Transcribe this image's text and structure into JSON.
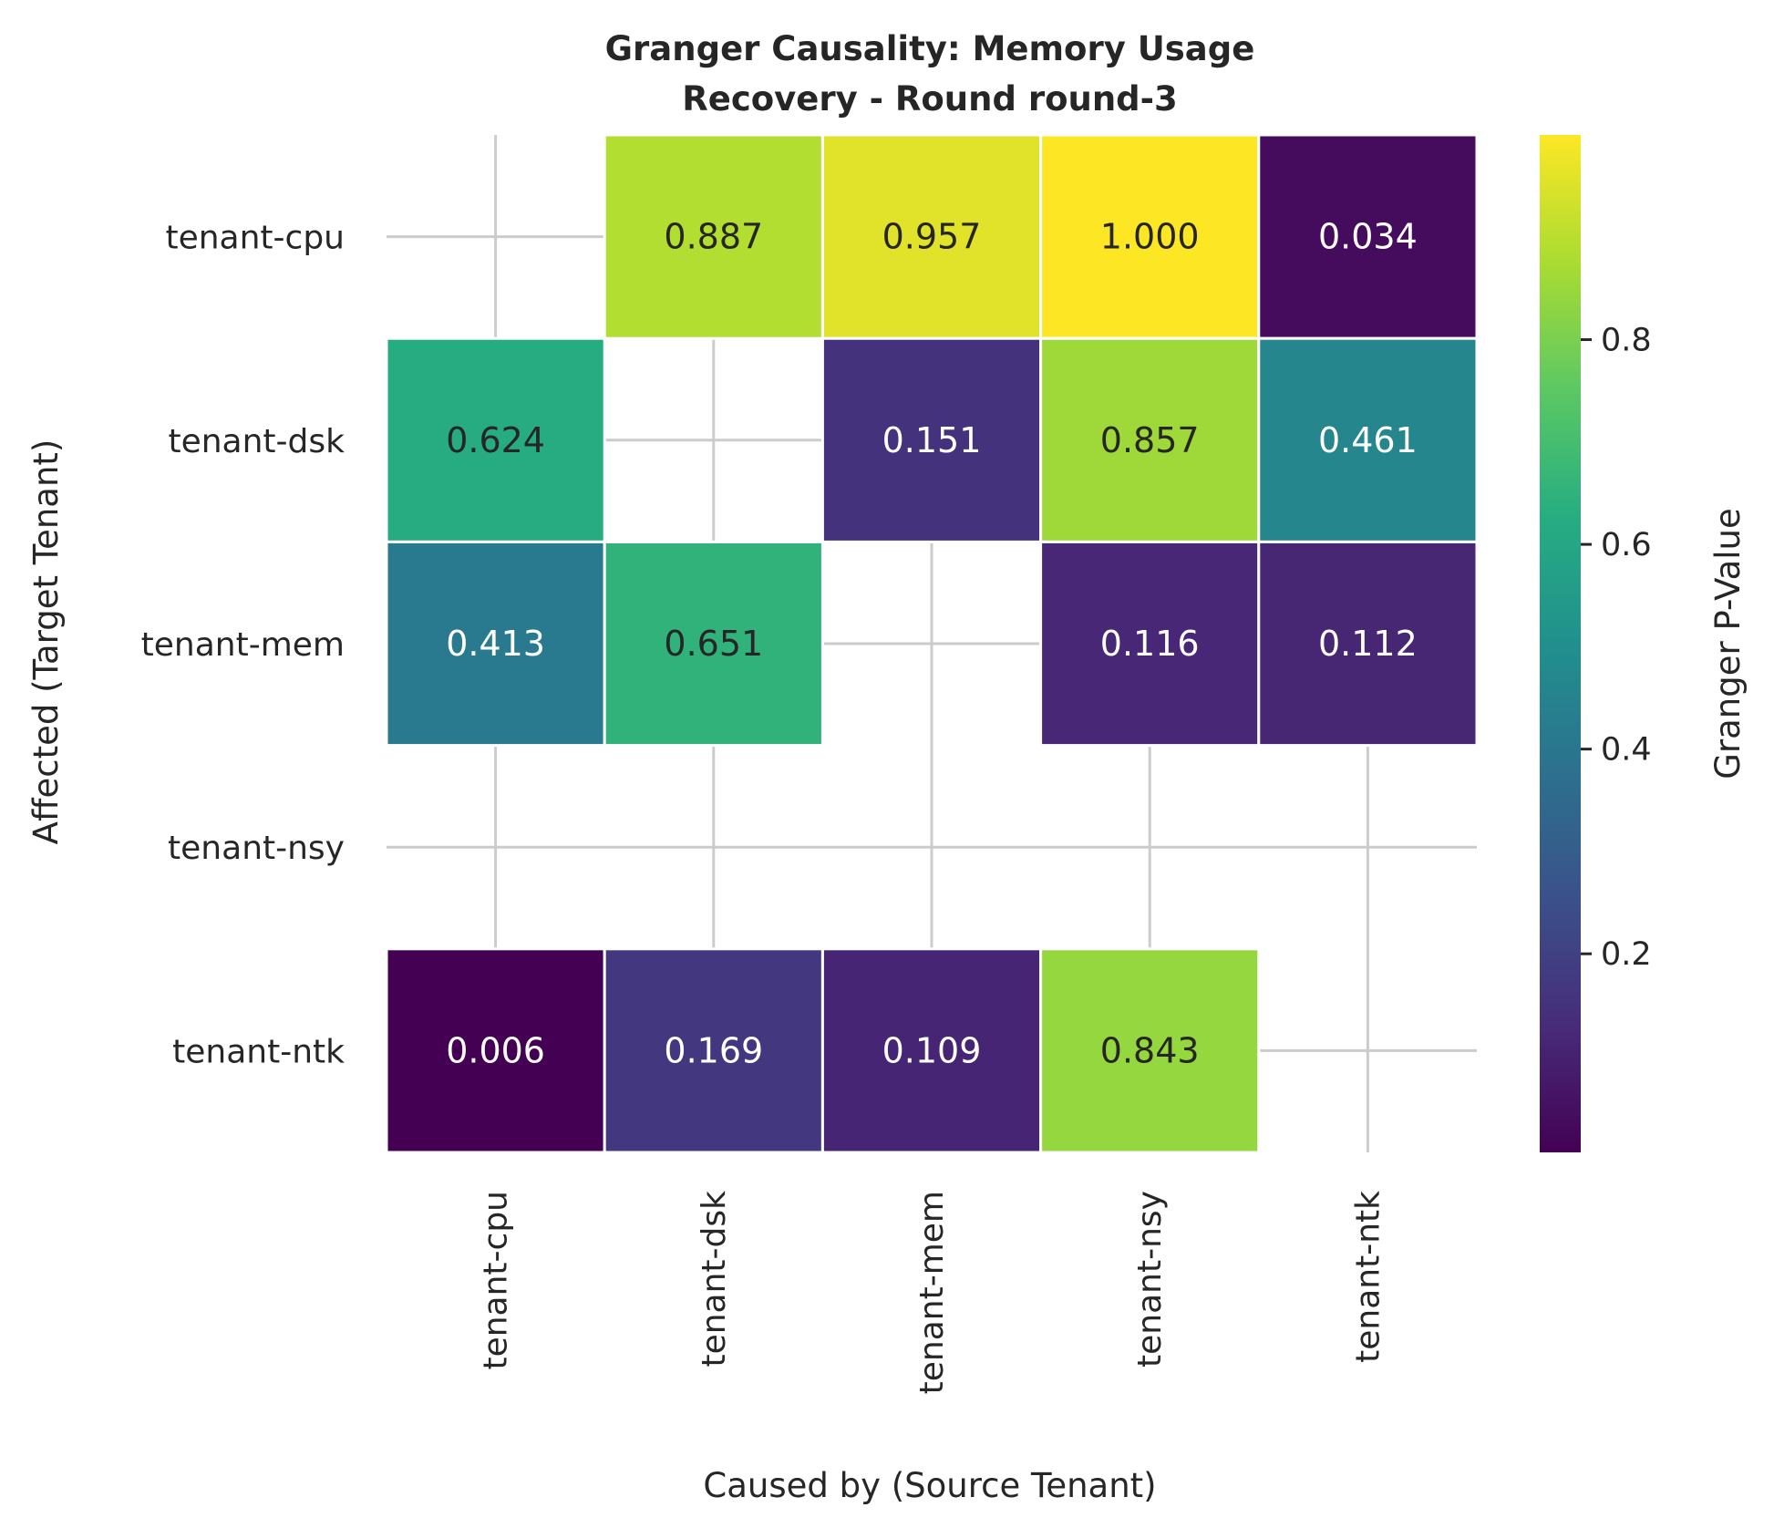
{
  "chart_data": {
    "type": "heatmap",
    "title_lines": [
      "Granger Causality: Memory Usage",
      "Recovery - Round round-3"
    ],
    "xlabel": "Caused by (Source Tenant)",
    "ylabel": "Affected (Target Tenant)",
    "x_categories": [
      "tenant-cpu",
      "tenant-dsk",
      "tenant-mem",
      "tenant-nsy",
      "tenant-ntk"
    ],
    "y_categories": [
      "tenant-cpu",
      "tenant-dsk",
      "tenant-mem",
      "tenant-nsy",
      "tenant-ntk"
    ],
    "values": [
      [
        null,
        0.887,
        0.957,
        1.0,
        0.034
      ],
      [
        0.624,
        null,
        0.151,
        0.857,
        0.461
      ],
      [
        0.413,
        0.651,
        null,
        0.116,
        0.112
      ],
      [
        null,
        null,
        null,
        null,
        null
      ],
      [
        0.006,
        0.169,
        0.109,
        0.843,
        null
      ]
    ],
    "value_labels": [
      [
        "",
        "0.887",
        "0.957",
        "1.000",
        "0.034"
      ],
      [
        "0.624",
        "",
        "0.151",
        "0.857",
        "0.461"
      ],
      [
        "0.413",
        "0.651",
        "",
        "0.116",
        "0.112"
      ],
      [
        "",
        "",
        "",
        "",
        ""
      ],
      [
        "0.006",
        "0.169",
        "0.109",
        "0.843",
        ""
      ]
    ],
    "colormap": "viridis",
    "vmin": 0.006,
    "vmax": 1.0,
    "colorbar": {
      "label": "Granger P-Value",
      "ticks": [
        0.2,
        0.4,
        0.6,
        0.8
      ],
      "tick_labels": [
        "0.2",
        "0.4",
        "0.6",
        "0.8"
      ]
    },
    "grid": true
  }
}
